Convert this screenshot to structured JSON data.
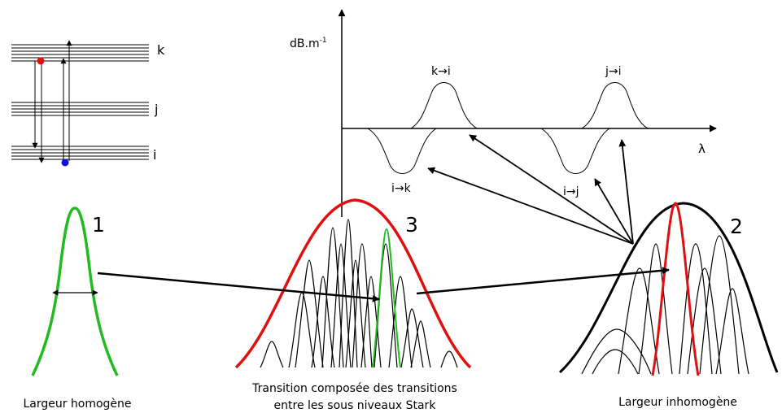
{
  "levels": {
    "k": "k",
    "j": "j",
    "i": "i"
  },
  "spectrum": {
    "ylabel": "dB.m",
    "ylabel_sup": "-1",
    "xlabel": "λ",
    "trans_k_i": "k→i",
    "trans_j_i": "j→i",
    "trans_i_k": "i→k",
    "trans_i_j": "i→j"
  },
  "profiles": {
    "num_1": "1",
    "num_2": "2",
    "num_3": "3",
    "caption_1": "Largeur homogène",
    "caption_3_line1": "Transition composée des transitions",
    "caption_3_line2": "entre les sous niveaux Stark",
    "caption_2": "Largeur inhomogène"
  },
  "colors": {
    "green": "#22bb22",
    "red": "#e01010",
    "black": "#000000",
    "blue": "#1010e0"
  }
}
